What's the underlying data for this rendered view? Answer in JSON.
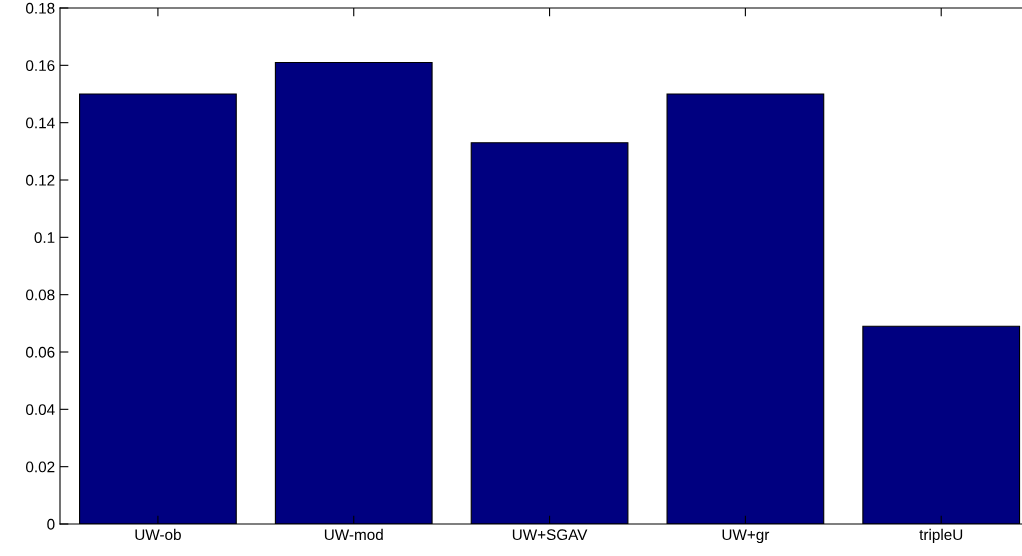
{
  "chart_data": {
    "type": "bar",
    "categories": [
      "UW-ob",
      "UW-mod",
      "UW+SGAV",
      "UW+gr",
      "tripleU"
    ],
    "values": [
      0.15,
      0.161,
      0.133,
      0.15,
      0.069
    ],
    "color": "#000080",
    "ylim": [
      0,
      0.18
    ],
    "yticks": [
      0,
      0.02,
      0.04,
      0.06,
      0.08,
      {
        "value": 0.1,
        "label": "0.1"
      },
      0.12,
      0.14,
      0.16,
      0.18
    ],
    "grid": false
  }
}
